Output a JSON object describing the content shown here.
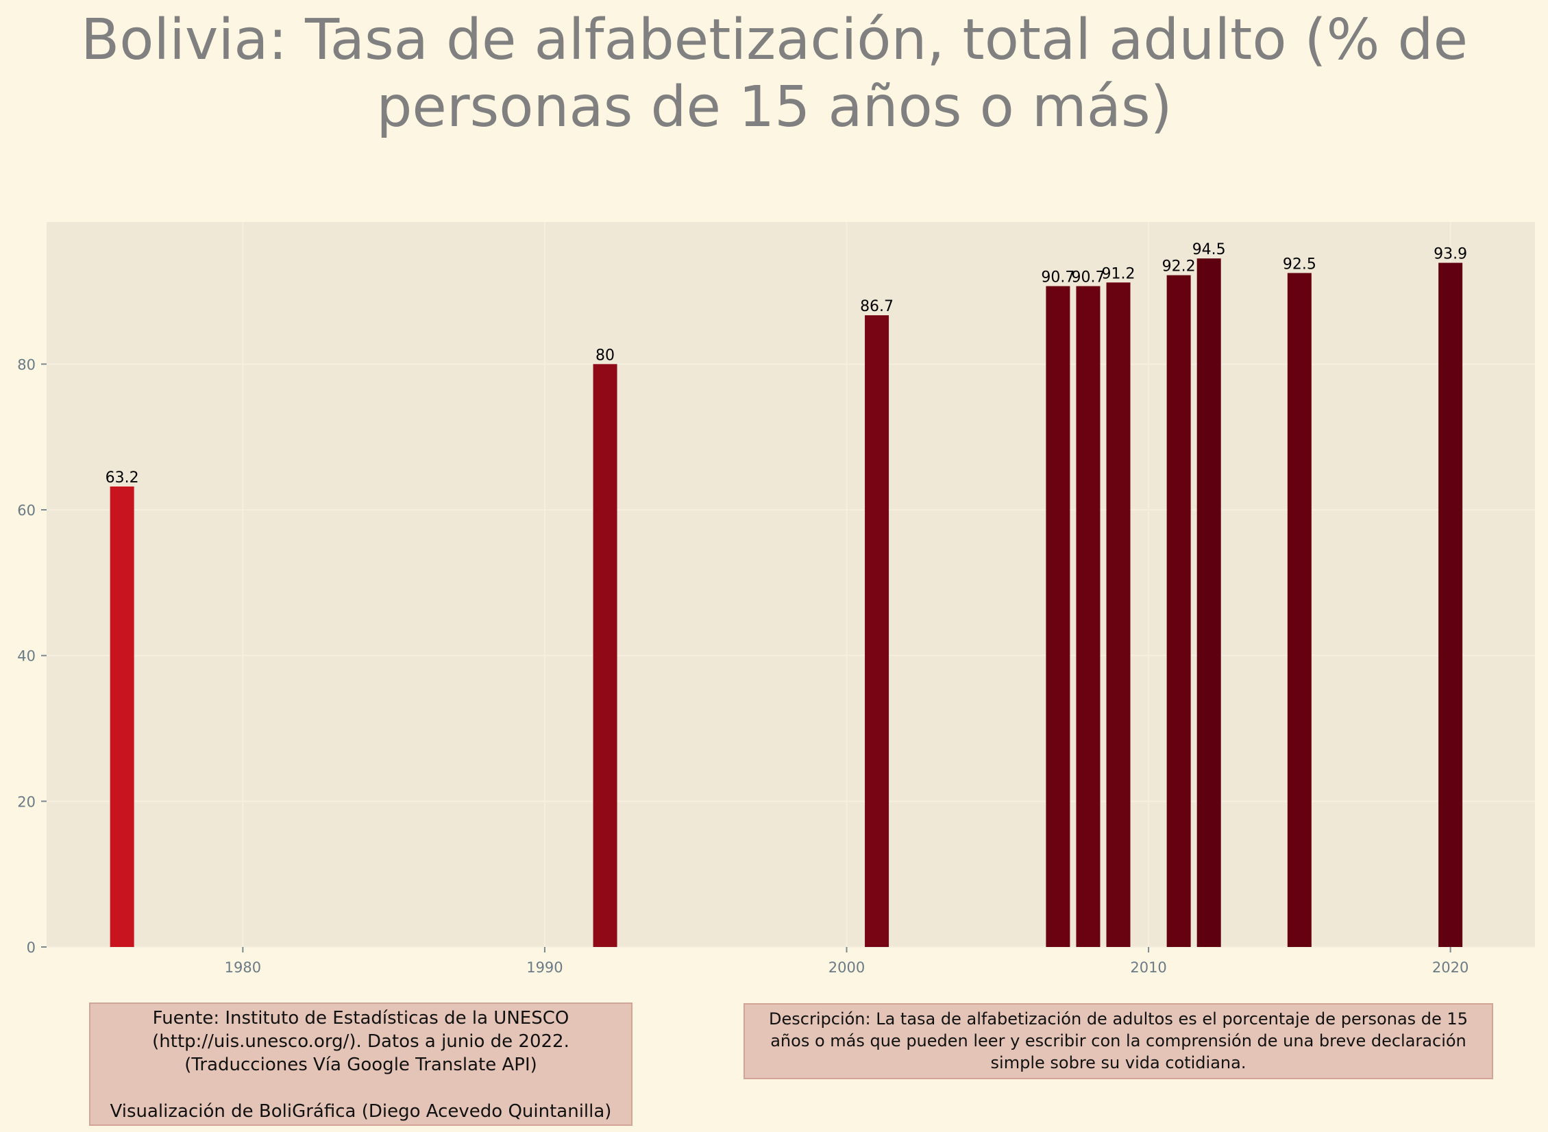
{
  "chart_data": {
    "type": "bar",
    "title": "Bolivia:  Tasa de alfabetización, total adulto (% de personas de 15 años o más)",
    "x": [
      1976,
      1992,
      2001,
      2007,
      2008,
      2009,
      2011,
      2012,
      2015,
      2020
    ],
    "values": [
      63.2,
      80,
      86.7,
      90.7,
      90.7,
      91.2,
      92.2,
      94.5,
      92.5,
      93.9
    ],
    "data_labels": [
      "63.2",
      "80",
      "86.7",
      "90.7",
      "90.7",
      "91.2",
      "92.2",
      "94.5",
      "92.5",
      "93.9"
    ],
    "xlim": [
      1973.5,
      2022.8
    ],
    "ylim": [
      0,
      99.5
    ],
    "xticks": [
      1980,
      1990,
      2000,
      2010,
      2020
    ],
    "yticks": [
      0,
      20,
      40,
      60,
      80
    ],
    "xlabel": "",
    "ylabel": "",
    "grid": true,
    "legend": "none",
    "color_low": "#c8141e",
    "color_high": "#5e0010"
  },
  "colors": {
    "background": "#fdf6e3",
    "plot_background": "#f0e8d6",
    "title": "#808080",
    "tick_label": "#6b7b86",
    "box_fill": "#e4c4b6",
    "box_border": "#d2a496"
  },
  "notes": {
    "source_lines": [
      "Fuente: Instituto de Estadísticas de la UNESCO",
      "(http://uis.unesco.org/). Datos a junio de 2022.",
      "(Traducciones Vía Google Translate API)",
      "",
      "Visualización de BoliGráfica (Diego Acevedo Quintanilla)"
    ],
    "description": "Descripción: La tasa de alfabetización de adultos es el porcentaje de personas de 15 años o más que pueden leer y escribir con la comprensión de una breve declaración simple sobre su vida cotidiana."
  }
}
